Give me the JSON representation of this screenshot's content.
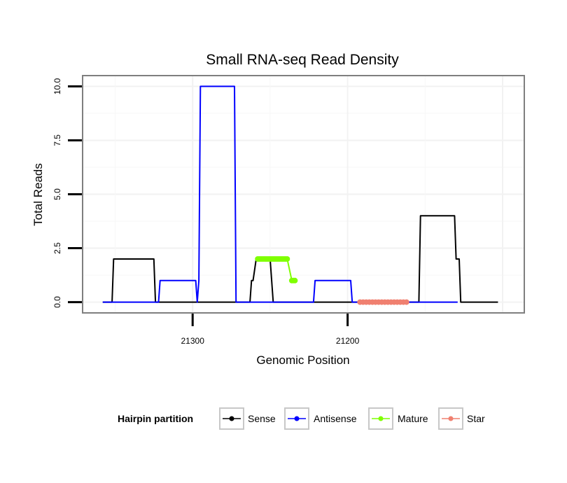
{
  "chart_data": {
    "type": "line",
    "title": "Small RNA-seq Read Density",
    "xlabel": "Genomic Position",
    "ylabel": "Total Reads",
    "x_reversed": true,
    "xlim": [
      21371,
      21086
    ],
    "ylim": [
      -0.5,
      10.5
    ],
    "x_ticks": [
      21300,
      21200
    ],
    "x_tick_labels": [
      "21300",
      "21200"
    ],
    "y_ticks": [
      0,
      2.5,
      5,
      7.5,
      10
    ],
    "y_tick_labels": [
      "0.0",
      "2.5",
      "5.0",
      "7.5",
      "10.0"
    ],
    "grid": true,
    "legend": {
      "title": "Hairpin partition",
      "position": "bottom",
      "entries": [
        {
          "label": "Sense",
          "color": "#000000"
        },
        {
          "label": "Antisense",
          "color": "#0000ff"
        },
        {
          "label": "Mature",
          "color": "#7fff00"
        },
        {
          "label": "Star",
          "color": "#f08070"
        }
      ]
    },
    "series": [
      {
        "name": "Sense",
        "color": "#000000",
        "markers": false,
        "x": [
          21358,
          21352,
          21351,
          21325,
          21324,
          21263,
          21262,
          21261,
          21259,
          21258,
          21254,
          21250,
          21249,
          21248,
          21225,
          21224,
          21154,
          21153,
          21131,
          21130,
          21128,
          21127,
          21103
        ],
        "y": [
          0,
          0,
          2,
          2,
          0,
          0,
          1,
          1,
          2,
          2,
          2,
          2,
          1,
          0,
          0,
          0,
          0,
          4,
          4,
          2,
          2,
          0,
          0
        ]
      },
      {
        "name": "Antisense",
        "color": "#0000ff",
        "markers": false,
        "x": [
          21358,
          21322,
          21321,
          21298,
          21297,
          21296,
          21295,
          21273,
          21272,
          21247,
          21246,
          21222,
          21221,
          21198,
          21197,
          21153,
          21152,
          21130,
          21129
        ],
        "y": [
          0,
          0,
          1,
          1,
          0,
          1,
          10,
          10,
          0,
          0,
          0,
          0,
          1,
          1,
          0,
          0,
          0,
          0,
          0
        ]
      },
      {
        "name": "Mature",
        "color": "#7fff00",
        "markers": true,
        "x": [
          21258,
          21257,
          21256,
          21255,
          21254,
          21253,
          21252,
          21251,
          21250,
          21249,
          21248,
          21247,
          21246,
          21245,
          21244,
          21243,
          21242,
          21241,
          21240,
          21239,
          21236,
          21235,
          21234
        ],
        "y": [
          2,
          2,
          2,
          2,
          2,
          2,
          2,
          2,
          2,
          2,
          2,
          2,
          2,
          2,
          2,
          2,
          2,
          2,
          2,
          2,
          1,
          1,
          1
        ]
      },
      {
        "name": "Star",
        "color": "#f08070",
        "markers": true,
        "x": [
          21192,
          21190,
          21188,
          21186,
          21184,
          21182,
          21180,
          21178,
          21176,
          21174,
          21172,
          21170,
          21168,
          21166,
          21164,
          21162
        ],
        "y": [
          0,
          0,
          0,
          0,
          0,
          0,
          0,
          0,
          0,
          0,
          0,
          0,
          0,
          0,
          0,
          0
        ]
      }
    ]
  }
}
